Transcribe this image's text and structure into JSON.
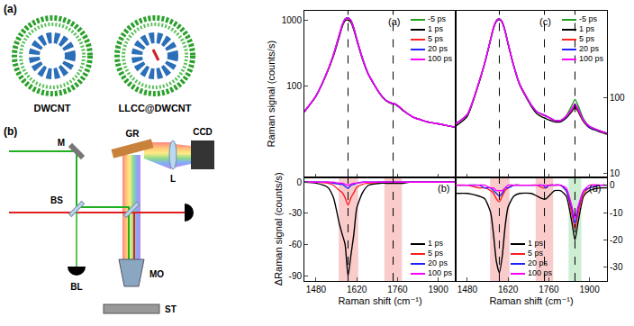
{
  "diagram": {
    "panel_a": {
      "label": "(a)",
      "structures": [
        "DWCNT",
        "LLCC@DWCNT"
      ]
    },
    "panel_b": {
      "label": "(b)",
      "components": [
        "M",
        "GR",
        "L",
        "CCD",
        "BS",
        "BL",
        "MO",
        "ST"
      ]
    }
  },
  "chart_data": [
    {
      "type": "line",
      "panel_label": "(a)",
      "y_label": "Raman signal (counts/s)",
      "log": "y",
      "xlim": [
        1440,
        1960
      ],
      "xticks": [
        1480,
        1620,
        1760,
        1900
      ],
      "ylim": [
        4,
        1400
      ],
      "yticks": [
        100,
        1000
      ],
      "tick_labels": "y",
      "legend": "upper right",
      "vlines": [
        1590,
        1745
      ],
      "x": [
        1440,
        1480,
        1520,
        1540,
        1560,
        1570,
        1580,
        1590,
        1600,
        1610,
        1620,
        1640,
        1660,
        1700,
        1720,
        1740,
        1750,
        1760,
        1780,
        1800,
        1820,
        1840,
        1850,
        1860,
        1880,
        1900,
        1940,
        1960
      ],
      "series": [
        {
          "name": "-5 ps",
          "color": "#1fa01f",
          "values": [
            40,
            70,
            170,
            300,
            600,
            850,
            1050,
            1100,
            1000,
            760,
            520,
            260,
            150,
            75,
            60,
            54,
            53,
            50,
            42,
            36,
            32,
            30,
            29,
            28,
            27,
            26,
            24,
            23
          ]
        },
        {
          "name": "1 ps",
          "color": "#000000",
          "values": [
            40,
            69,
            165,
            285,
            560,
            800,
            990,
            1010,
            930,
            710,
            495,
            250,
            147,
            74,
            59,
            53,
            52,
            49,
            41,
            36,
            32,
            30,
            29,
            28,
            27,
            26,
            24,
            23
          ]
        },
        {
          "name": "5 ps",
          "color": "#ff2020",
          "values": [
            40,
            70,
            169,
            297,
            592,
            840,
            1035,
            1078,
            985,
            750,
            515,
            258,
            149,
            75,
            60,
            54,
            53,
            50,
            42,
            36,
            32,
            30,
            29,
            28,
            27,
            26,
            24,
            23
          ]
        },
        {
          "name": "20 ps",
          "color": "#2020ff",
          "values": [
            40,
            70,
            170,
            299,
            598,
            848,
            1046,
            1094,
            997,
            758,
            519,
            260,
            150,
            75,
            60,
            54,
            53,
            50,
            42,
            36,
            32,
            30,
            29,
            28,
            27,
            26,
            24,
            23
          ]
        },
        {
          "name": "100 ps",
          "color": "#ff00ff",
          "values": [
            40,
            70,
            170,
            300,
            599,
            849,
            1048,
            1097,
            998,
            759,
            519,
            260,
            150,
            75,
            60,
            54,
            53,
            50,
            42,
            36,
            32,
            30,
            29,
            28,
            27,
            26,
            24,
            23
          ]
        }
      ]
    },
    {
      "type": "line",
      "panel_label": "(b)",
      "y_label": "ΔRaman signal (counts/s)",
      "x_label": "Raman shift (cm⁻¹)",
      "xlim": [
        1440,
        1960
      ],
      "xticks": [
        1480,
        1620,
        1760,
        1900
      ],
      "ylim": [
        -95,
        5
      ],
      "yticks": [
        0,
        -30,
        -60,
        -90
      ],
      "legend": "lower right",
      "vlines": [
        1590,
        1745
      ],
      "highlights": [
        {
          "x": [
            1558,
            1625
          ],
          "color": "#f4a0a0"
        },
        {
          "x": [
            1715,
            1775
          ],
          "color": "#f4a0a0"
        }
      ],
      "x": [
        1440,
        1480,
        1520,
        1540,
        1560,
        1570,
        1580,
        1590,
        1600,
        1610,
        1620,
        1640,
        1660,
        1700,
        1720,
        1740,
        1750,
        1760,
        1780,
        1800,
        1820,
        1840,
        1850,
        1860,
        1880,
        1900,
        1940,
        1960
      ],
      "series": [
        {
          "name": "1 ps",
          "color": "#000000",
          "values": [
            0,
            -1,
            -5,
            -15,
            -40,
            -50,
            -60,
            -90,
            -70,
            -50,
            -25,
            -10,
            -3,
            -1,
            -1,
            -1,
            -1,
            -1,
            -1,
            0,
            0,
            0,
            0,
            0,
            0,
            0,
            0,
            0
          ]
        },
        {
          "name": "5 ps",
          "color": "#ff2020",
          "values": [
            0,
            0,
            -1,
            -3,
            -8,
            -10,
            -15,
            -22,
            -15,
            -10,
            -5,
            -2,
            -1,
            0,
            0,
            0,
            0,
            0,
            0,
            0,
            0,
            0,
            0,
            0,
            0,
            0,
            0,
            0
          ]
        },
        {
          "name": "20 ps",
          "color": "#2020ff",
          "values": [
            0,
            0,
            0,
            -1,
            -2,
            -2,
            -4,
            -6,
            -3,
            -2,
            -1,
            0,
            0,
            0,
            0,
            0,
            0,
            0,
            0,
            0,
            0,
            0,
            0,
            0,
            0,
            0,
            0,
            0
          ]
        },
        {
          "name": "100 ps",
          "color": "#ff00ff",
          "values": [
            0,
            0,
            0,
            0,
            -1,
            -1,
            -2,
            -3,
            -2,
            -1,
            -1,
            0,
            0,
            0,
            0,
            0,
            0,
            0,
            0,
            0,
            0,
            0,
            0,
            0,
            0,
            0,
            0,
            0
          ]
        }
      ]
    },
    {
      "type": "line",
      "panel_label": "(c)",
      "log": "y",
      "xlim": [
        1440,
        1960
      ],
      "xticks": [
        1480,
        1620,
        1760,
        1900
      ],
      "ylim": [
        9,
        1400
      ],
      "yticks": [
        10,
        100
      ],
      "tick_labels": "y",
      "legend": "upper right",
      "vlines": [
        1590,
        1745,
        1850
      ],
      "x": [
        1440,
        1480,
        1520,
        1540,
        1560,
        1570,
        1580,
        1590,
        1600,
        1610,
        1620,
        1640,
        1660,
        1700,
        1720,
        1740,
        1750,
        1760,
        1780,
        1800,
        1820,
        1840,
        1850,
        1860,
        1880,
        1900,
        1940,
        1960
      ],
      "series": [
        {
          "name": "-5 ps",
          "color": "#1fa01f",
          "values": [
            45,
            60,
            160,
            290,
            590,
            840,
            1040,
            1100,
            1000,
            760,
            520,
            260,
            150,
            80,
            65,
            60,
            58,
            55,
            50,
            50,
            58,
            80,
            95,
            80,
            52,
            42,
            36,
            34
          ]
        },
        {
          "name": "1 ps",
          "color": "#000000",
          "values": [
            42,
            57,
            156,
            285,
            580,
            822,
            1012,
            1068,
            974,
            745,
            512,
            256,
            147,
            77,
            61,
            55,
            53,
            51,
            48,
            48,
            54,
            66,
            75,
            66,
            48,
            40,
            35,
            33
          ]
        },
        {
          "name": "5 ps",
          "color": "#ff2020",
          "values": [
            45,
            60,
            159,
            289,
            588,
            837,
            1035,
            1094,
            996,
            758,
            519,
            260,
            150,
            80,
            65,
            59,
            57,
            55,
            50,
            50,
            56,
            69,
            79,
            69,
            49,
            41,
            36,
            34
          ]
        },
        {
          "name": "20 ps",
          "color": "#2020ff",
          "values": [
            45,
            60,
            160,
            289,
            589,
            838,
            1037,
            1096,
            997,
            759,
            519,
            260,
            150,
            80,
            65,
            60,
            57,
            55,
            50,
            50,
            56,
            71,
            81,
            71,
            50,
            41,
            36,
            34
          ]
        },
        {
          "name": "100 ps",
          "color": "#ff00ff",
          "values": [
            45,
            60,
            160,
            290,
            589,
            839,
            1038,
            1098,
            998,
            759,
            520,
            260,
            150,
            80,
            65,
            60,
            58,
            55,
            50,
            50,
            57,
            72,
            83,
            72,
            50,
            42,
            36,
            34
          ]
        }
      ]
    },
    {
      "type": "line",
      "panel_label": "(d)",
      "x_label": "Raman shift (cm⁻¹)",
      "xlim": [
        1440,
        1960
      ],
      "xticks": [
        1480,
        1620,
        1760,
        1900
      ],
      "ylim": [
        -35,
        3
      ],
      "yticks": [
        0,
        -10,
        -20,
        -30
      ],
      "legend": "lower center",
      "vlines": [
        1590,
        1745,
        1850
      ],
      "highlights": [
        {
          "x": [
            1558,
            1625
          ],
          "color": "#f4a0a0"
        },
        {
          "x": [
            1715,
            1775
          ],
          "color": "#f4a0a0"
        },
        {
          "x": [
            1828,
            1872
          ],
          "color": "#a6e0b0"
        }
      ],
      "x": [
        1440,
        1480,
        1520,
        1540,
        1560,
        1570,
        1580,
        1590,
        1600,
        1610,
        1620,
        1640,
        1660,
        1700,
        1720,
        1740,
        1750,
        1760,
        1780,
        1800,
        1820,
        1840,
        1850,
        1860,
        1880,
        1900,
        1940,
        1960
      ],
      "series": [
        {
          "name": "1 ps",
          "color": "#000000",
          "values": [
            -3,
            -3,
            -4,
            -5,
            -10,
            -18,
            -28,
            -32,
            -26,
            -15,
            -8,
            -4,
            -3,
            -3,
            -4,
            -5,
            -5,
            -4,
            -2,
            -2,
            -4,
            -14,
            -20,
            -14,
            -4,
            -2,
            -1,
            -1
          ]
        },
        {
          "name": "5 ps",
          "color": "#ff2020",
          "values": [
            0,
            0,
            -1,
            -1,
            -2,
            -3,
            -5,
            -6,
            -4,
            -2,
            -1,
            0,
            0,
            0,
            0,
            -1,
            -1,
            0,
            0,
            0,
            -2,
            -11,
            -16,
            -11,
            -3,
            -1,
            0,
            0
          ]
        },
        {
          "name": "20 ps",
          "color": "#2020ff",
          "values": [
            0,
            0,
            0,
            -1,
            -1,
            -2,
            -3,
            -4,
            -3,
            -1,
            -1,
            0,
            0,
            0,
            0,
            0,
            -1,
            0,
            0,
            0,
            -2,
            -9,
            -14,
            -9,
            -2,
            -1,
            0,
            0
          ]
        },
        {
          "name": "100 ps",
          "color": "#ff00ff",
          "values": [
            0,
            0,
            0,
            0,
            -1,
            -1,
            -2,
            -2,
            -2,
            -1,
            0,
            0,
            0,
            0,
            0,
            0,
            0,
            0,
            0,
            0,
            -1,
            -8,
            -12,
            -8,
            -2,
            0,
            0,
            0
          ]
        }
      ]
    }
  ]
}
